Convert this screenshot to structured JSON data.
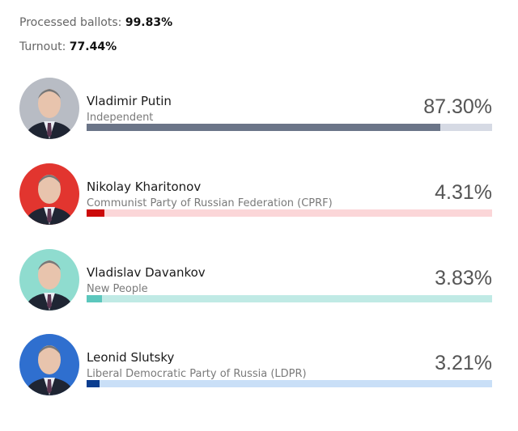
{
  "summary": {
    "processed_label": "Processed ballots:",
    "processed_value": "99.83%",
    "turnout_label": "Turnout:",
    "turnout_value": "77.44%"
  },
  "chart_data": {
    "type": "bar",
    "orientation": "horizontal",
    "categories": [
      "Vladimir Putin",
      "Nikolay Kharitonov",
      "Vladislav Davankov",
      "Leonid Slutsky"
    ],
    "values": [
      87.3,
      4.31,
      3.83,
      3.21
    ],
    "xlim": [
      0,
      100
    ]
  },
  "candidates": [
    {
      "name": "Vladimir Putin",
      "party": "Independent",
      "percent_label": "87.30%",
      "value": 87.3,
      "fill": "#6b7588",
      "track": "#d6dae4",
      "bg": "#b8bcc4"
    },
    {
      "name": "Nikolay Kharitonov",
      "party": "Communist Party of Russian Federation (CPRF)",
      "percent_label": "4.31%",
      "value": 4.31,
      "fill": "#cc0a0a",
      "track": "#fbd6d8",
      "bg": "#e2352f"
    },
    {
      "name": "Vladislav Davankov",
      "party": "New People",
      "percent_label": "3.83%",
      "value": 3.83,
      "fill": "#5cc7bd",
      "track": "#c0eae5",
      "bg": "#8fdccf"
    },
    {
      "name": "Leonid Slutsky",
      "party": "Liberal Democratic Party of Russia (LDPR)",
      "percent_label": "3.21%",
      "value": 3.21,
      "fill": "#0b3d8f",
      "track": "#c9dff7",
      "bg": "#2f6fcf"
    }
  ]
}
